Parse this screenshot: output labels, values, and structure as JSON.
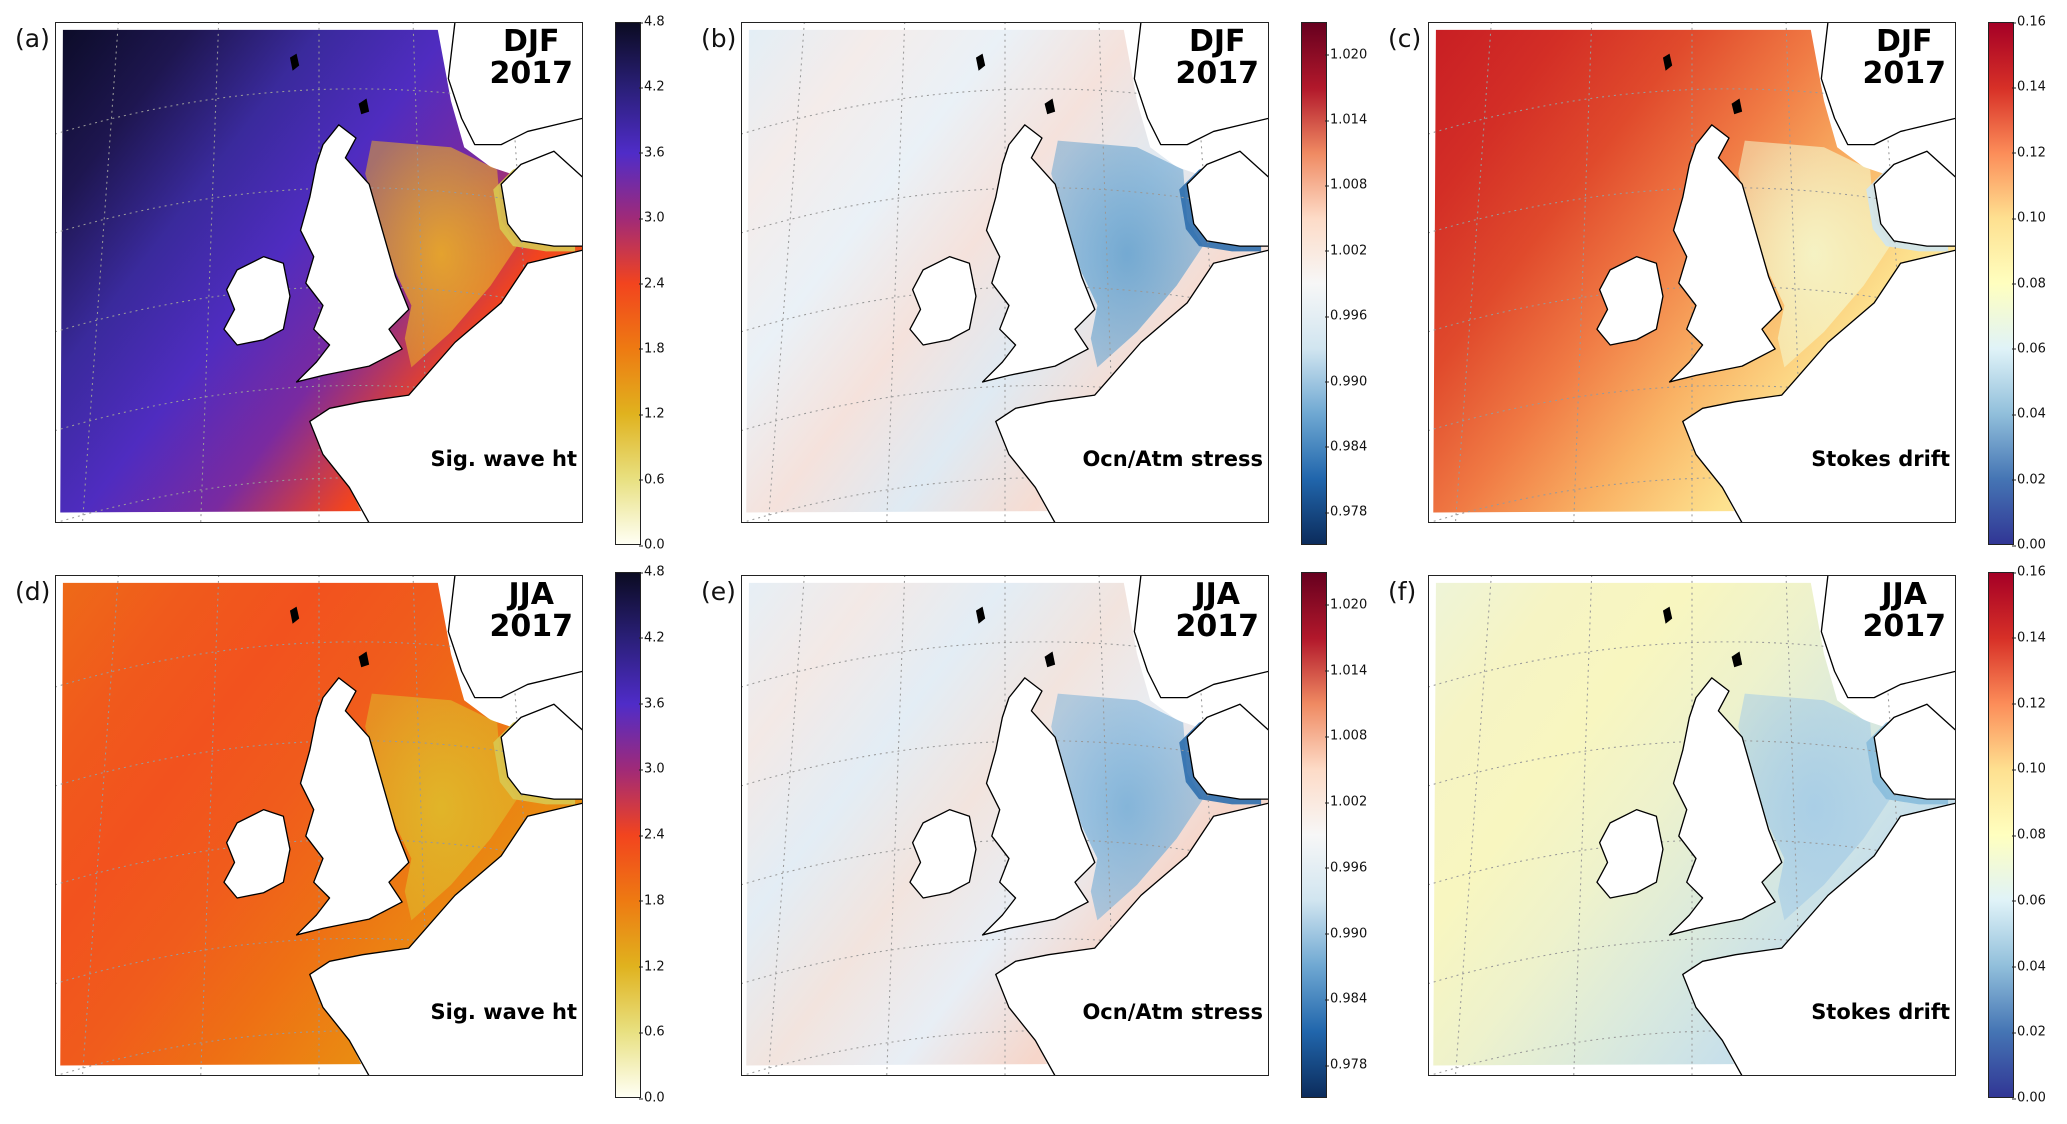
{
  "colormaps": {
    "wave": [
      "#fffff4",
      "#e8e080",
      "#e0b21e",
      "#ee7a12",
      "#f2441e",
      "#a02a78",
      "#4f2cc8",
      "#2a1f78",
      "#0b0b22"
    ],
    "stress": [
      "#0c2c5c",
      "#2166ac",
      "#6fa8d2",
      "#d1e5f0",
      "#f7f7f7",
      "#fddbc7",
      "#ef8a62",
      "#b2182b",
      "#67001f"
    ],
    "stokes": [
      "#313695",
      "#4575b4",
      "#91bfdb",
      "#e0f3f8",
      "#ffffbf",
      "#fee090",
      "#fc8d59",
      "#d73027",
      "#a50026"
    ]
  },
  "chart_data": [
    {
      "id": "a",
      "type": "heatmap",
      "panel_label": "(a)",
      "season": "DJF",
      "year": "2017",
      "variable": "Sig. wave ht",
      "colormap": "wave",
      "range": [
        0,
        4.8
      ],
      "ticks": [
        "0.0",
        "0.6",
        "1.2",
        "1.8",
        "2.4",
        "3.0",
        "3.6",
        "4.2",
        "4.8"
      ],
      "fill": [
        "#0c0c28",
        "#1e1650",
        "#3a2a9c",
        "#4f2cc0",
        "#7a2aa0",
        "#f2441e",
        "#ee7a12"
      ],
      "northsea": "#e8a82a",
      "baltic": "#d8c850"
    },
    {
      "id": "b",
      "type": "heatmap",
      "panel_label": "(b)",
      "season": "DJF",
      "year": "2017",
      "variable": "Ocn/Atm stress",
      "colormap": "stress",
      "range": [
        0.975,
        1.023
      ],
      "ticks": [
        "0.978",
        "0.984",
        "0.990",
        "0.996",
        "1.002",
        "1.008",
        "1.014",
        "1.020"
      ],
      "fill": [
        "#e3eef6",
        "#f4ecea",
        "#eaf1f7",
        "#f5e2dc",
        "#dfeaf3",
        "#f6dcd2",
        "#e9eff5"
      ],
      "northsea": "#6ea6d0",
      "baltic": "#2f6fae"
    },
    {
      "id": "c",
      "type": "heatmap",
      "panel_label": "(c)",
      "season": "DJF",
      "year": "2017",
      "variable": "Stokes drift",
      "colormap": "stokes",
      "range": [
        0,
        0.16
      ],
      "ticks": [
        "0.00",
        "0.02",
        "0.04",
        "0.06",
        "0.08",
        "0.10",
        "0.12",
        "0.14",
        "0.16"
      ],
      "fill": [
        "#c81e24",
        "#d32e26",
        "#e04a2c",
        "#f07a44",
        "#f9b264",
        "#fde18e",
        "#fff0b0"
      ],
      "northsea": "#f5f5c8",
      "baltic": "#cfe6f0"
    },
    {
      "id": "d",
      "type": "heatmap",
      "panel_label": "(d)",
      "season": "JJA",
      "year": "2017",
      "variable": "Sig. wave ht",
      "colormap": "wave",
      "range": [
        0,
        4.8
      ],
      "ticks": [
        "0.0",
        "0.6",
        "1.2",
        "1.8",
        "2.4",
        "3.0",
        "3.6",
        "4.2",
        "4.8"
      ],
      "fill": [
        "#ee6a18",
        "#f05a1c",
        "#f2521e",
        "#f05c1c",
        "#ee7014",
        "#ea8a12",
        "#e49a14"
      ],
      "northsea": "#e0b82a",
      "baltic": "#d8c850"
    },
    {
      "id": "e",
      "type": "heatmap",
      "panel_label": "(e)",
      "season": "JJA",
      "year": "2017",
      "variable": "Ocn/Atm stress",
      "colormap": "stress",
      "range": [
        0.975,
        1.023
      ],
      "ticks": [
        "0.978",
        "0.984",
        "0.990",
        "0.996",
        "1.002",
        "1.008",
        "1.014",
        "1.020"
      ],
      "fill": [
        "#e6eff6",
        "#f3e9e6",
        "#e3edf5",
        "#f2e4de",
        "#e8eef5",
        "#f6d6ca",
        "#f2ddd4"
      ],
      "northsea": "#7fb2d8",
      "baltic": "#2f6fae"
    },
    {
      "id": "f",
      "type": "heatmap",
      "panel_label": "(f)",
      "season": "JJA",
      "year": "2017",
      "variable": "Stokes drift",
      "colormap": "stokes",
      "range": [
        0,
        0.16
      ],
      "ticks": [
        "0.00",
        "0.02",
        "0.04",
        "0.06",
        "0.08",
        "0.10",
        "0.12",
        "0.14",
        "0.16"
      ],
      "fill": [
        "#eef4d8",
        "#f6f4c4",
        "#f8f6c0",
        "#eef2cc",
        "#dbeadc",
        "#c8e0ea",
        "#bcd9ea"
      ],
      "northsea": "#a7cde6",
      "baltic": "#88bcdc"
    }
  ]
}
